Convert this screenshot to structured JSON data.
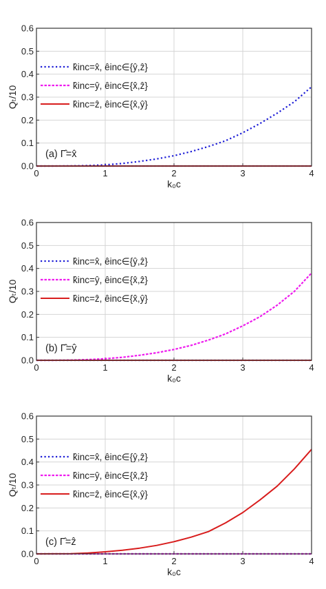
{
  "chart_data": [
    {
      "type": "line",
      "panel_label": "(a) Γ̂=x̂",
      "xlabel": "k₀c",
      "ylabel": "Qₜ/10",
      "xlim": [
        0,
        4
      ],
      "ylim": [
        0,
        0.6
      ],
      "xticks": [
        "0",
        "1",
        "2",
        "3",
        "4"
      ],
      "yticks": [
        "0.0",
        "0.1",
        "0.2",
        "0.3",
        "0.4",
        "0.5",
        "0.6"
      ],
      "grid": true,
      "legend_position": "left-middle",
      "x": [
        0,
        0.25,
        0.5,
        0.75,
        1,
        1.25,
        1.5,
        1.75,
        2,
        2.25,
        2.5,
        2.75,
        3,
        3.25,
        3.5,
        3.75,
        4
      ],
      "series": [
        {
          "name": "k̂inc=x̂, êinc∈{ŷ,ẑ}",
          "color": "#1a1ad6",
          "dash": "dotted",
          "values": [
            0,
            0.0001,
            0.0005,
            0.002,
            0.005,
            0.011,
            0.02,
            0.031,
            0.045,
            0.063,
            0.085,
            0.11,
            0.145,
            0.185,
            0.23,
            0.28,
            0.345
          ]
        },
        {
          "name": "k̂inc=ŷ, êinc∈{x̂,ẑ}",
          "color": "#ee1aee",
          "dash": "dashed",
          "values": [
            0,
            0,
            0,
            0,
            0,
            0,
            0,
            0,
            0,
            0,
            0,
            0,
            0,
            0,
            0,
            0,
            0
          ]
        },
        {
          "name": "k̂inc=ẑ, êinc∈{x̂,ŷ}",
          "color": "#d81c1c",
          "dash": "solid",
          "values": [
            0,
            0,
            0,
            0,
            0,
            0,
            0,
            0,
            0,
            0,
            0,
            0,
            0,
            0,
            0,
            0,
            0
          ]
        }
      ]
    },
    {
      "type": "line",
      "panel_label": "(b) Γ̂=ŷ",
      "xlabel": "k₀c",
      "ylabel": "Qₜ/10",
      "xlim": [
        0,
        4
      ],
      "ylim": [
        0,
        0.6
      ],
      "xticks": [
        "0",
        "1",
        "2",
        "3",
        "4"
      ],
      "yticks": [
        "0.0",
        "0.1",
        "0.2",
        "0.3",
        "0.4",
        "0.5",
        "0.6"
      ],
      "grid": true,
      "legend_position": "left-middle",
      "x": [
        0,
        0.25,
        0.5,
        0.75,
        1,
        1.25,
        1.5,
        1.75,
        2,
        2.25,
        2.5,
        2.75,
        3,
        3.25,
        3.5,
        3.75,
        4
      ],
      "series": [
        {
          "name": "k̂inc=x̂, êinc∈{ŷ,ẑ}",
          "color": "#1a1ad6",
          "dash": "dotted",
          "values": [
            0,
            0,
            0,
            0,
            0,
            0,
            0,
            0,
            0,
            0,
            0,
            0,
            0,
            0,
            0,
            0,
            0
          ]
        },
        {
          "name": "k̂inc=ŷ, êinc∈{x̂,ẑ}",
          "color": "#ee1aee",
          "dash": "dashed",
          "values": [
            0,
            0.0001,
            0.0008,
            0.003,
            0.007,
            0.013,
            0.022,
            0.033,
            0.047,
            0.065,
            0.088,
            0.115,
            0.15,
            0.19,
            0.24,
            0.3,
            0.38
          ]
        },
        {
          "name": "k̂inc=ẑ, êinc∈{x̂,ŷ}",
          "color": "#d81c1c",
          "dash": "solid",
          "values": [
            0,
            0,
            0,
            0,
            0,
            0,
            0,
            0,
            0,
            0,
            0,
            0,
            0,
            0,
            0,
            0,
            0
          ]
        }
      ]
    },
    {
      "type": "line",
      "panel_label": "(c) Γ̂=ẑ",
      "xlabel": "k₀c",
      "ylabel": "Qₜ/10",
      "xlim": [
        0,
        4
      ],
      "ylim": [
        0,
        0.6
      ],
      "xticks": [
        "0",
        "1",
        "2",
        "3",
        "4"
      ],
      "yticks": [
        "0.0",
        "0.1",
        "0.2",
        "0.3",
        "0.4",
        "0.5",
        "0.6"
      ],
      "grid": true,
      "legend_position": "left-top",
      "x": [
        0,
        0.25,
        0.5,
        0.75,
        1,
        1.25,
        1.5,
        1.75,
        2,
        2.25,
        2.5,
        2.75,
        3,
        3.25,
        3.5,
        3.75,
        4
      ],
      "series": [
        {
          "name": "k̂inc=x̂, êinc∈{ŷ,ẑ}",
          "color": "#1a1ad6",
          "dash": "dotted",
          "values": [
            0,
            0,
            0,
            0,
            0,
            0,
            0,
            0,
            0,
            0,
            0,
            0,
            0,
            0,
            0,
            0,
            0
          ]
        },
        {
          "name": "k̂inc=ŷ, êinc∈{x̂,ẑ}",
          "color": "#ee1aee",
          "dash": "dashed",
          "values": [
            0,
            0,
            0,
            0,
            0,
            0,
            0,
            0,
            0,
            0,
            0,
            0,
            0,
            0,
            0,
            0,
            0
          ]
        },
        {
          "name": "k̂inc=ẑ, êinc∈{x̂,ŷ}",
          "color": "#d81c1c",
          "dash": "solid",
          "values": [
            0,
            0.0002,
            0.001,
            0.004,
            0.009,
            0.016,
            0.025,
            0.037,
            0.053,
            0.073,
            0.097,
            0.135,
            0.18,
            0.235,
            0.295,
            0.37,
            0.455
          ]
        }
      ]
    }
  ]
}
